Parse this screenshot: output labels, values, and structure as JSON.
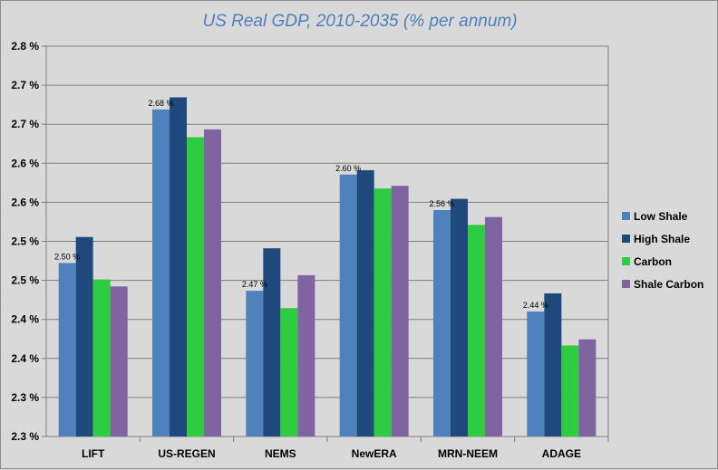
{
  "chart_data": {
    "type": "bar",
    "title": "US Real GDP, 2010-2035 (% per annum)",
    "xlabel": "",
    "ylabel": "",
    "ylim": [
      2.3,
      2.75
    ],
    "y_tick_labels": [
      "2.3 %",
      "2.3 %",
      "2.4 %",
      "2.4 %",
      "2.5 %",
      "2.5 %",
      "2.6 %",
      "2.6 %",
      "2.7 %",
      "2.7 %",
      "2.8 %"
    ],
    "categories": [
      "LIFT",
      "US-REGEN",
      "NEMS",
      "NewERA",
      "MRN-NEEM",
      "ADAGE"
    ],
    "series": [
      {
        "name": "Low Shale",
        "color": "#4f81bd",
        "values": [
          2.5,
          2.677,
          2.468,
          2.602,
          2.561,
          2.444
        ]
      },
      {
        "name": "High Shale",
        "color": "#1f497d",
        "values": [
          2.53,
          2.691,
          2.517,
          2.607,
          2.574,
          2.465
        ]
      },
      {
        "name": "Carbon",
        "color": "#2ecc40",
        "values": [
          2.481,
          2.645,
          2.448,
          2.586,
          2.544,
          2.405
        ]
      },
      {
        "name": "Shale Carbon",
        "color": "#8064a2",
        "values": [
          2.473,
          2.654,
          2.486,
          2.589,
          2.553,
          2.412
        ]
      }
    ],
    "data_labels": [
      "2.50 %",
      "2.68 %",
      "2.47 %",
      "2.60 %",
      "2.56 %",
      "2.44 %"
    ],
    "grid": true,
    "legend_position": "right"
  }
}
